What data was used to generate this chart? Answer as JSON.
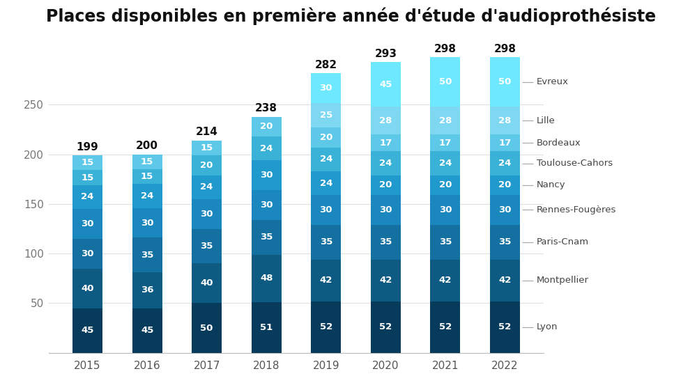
{
  "title": "Places disponibles en première année d'étude d'audioprothésiste",
  "years": [
    2015,
    2016,
    2017,
    2018,
    2019,
    2020,
    2021,
    2022
  ],
  "totals": [
    199,
    200,
    214,
    238,
    282,
    293,
    298,
    298
  ],
  "schools": [
    "Lyon",
    "Montpellier",
    "Paris-Cnam",
    "Rennes-Fougères",
    "Nancy",
    "Toulouse-Cahors",
    "Bordeaux",
    "Lille",
    "Evreux"
  ],
  "data": {
    "Lyon": [
      45,
      45,
      50,
      51,
      52,
      52,
      52,
      52
    ],
    "Montpellier": [
      40,
      36,
      40,
      48,
      42,
      42,
      42,
      42
    ],
    "Paris-Cnam": [
      30,
      35,
      35,
      35,
      35,
      35,
      35,
      35
    ],
    "Rennes-Fougères": [
      30,
      30,
      30,
      30,
      30,
      30,
      30,
      30
    ],
    "Nancy": [
      24,
      24,
      24,
      30,
      24,
      20,
      20,
      20
    ],
    "Toulouse-Cahors": [
      15,
      15,
      20,
      24,
      24,
      24,
      24,
      24
    ],
    "Bordeaux": [
      15,
      15,
      15,
      20,
      20,
      17,
      17,
      17
    ],
    "Lille": [
      0,
      0,
      0,
      0,
      25,
      28,
      28,
      28
    ],
    "Evreux": [
      0,
      0,
      0,
      0,
      30,
      45,
      50,
      50
    ]
  },
  "colors": {
    "Lyon": "#073b5c",
    "Montpellier": "#0d5a82",
    "Paris-Cnam": "#1470a0",
    "Rennes-Fougères": "#1a88bf",
    "Nancy": "#2099cc",
    "Toulouse-Cahors": "#3ab2d8",
    "Bordeaux": "#5dc8e8",
    "Lille": "#7ed8f2",
    "Evreux": "#6ee8ff"
  },
  "background_color": "#ffffff",
  "bar_width": 0.5,
  "ylim": [
    0,
    320
  ],
  "yticks": [
    0,
    50,
    100,
    150,
    200,
    250
  ],
  "label_color": "#ffffff",
  "total_color": "#111111",
  "title_fontsize": 17,
  "tick_fontsize": 11,
  "annotation_fontsize": 9.5
}
